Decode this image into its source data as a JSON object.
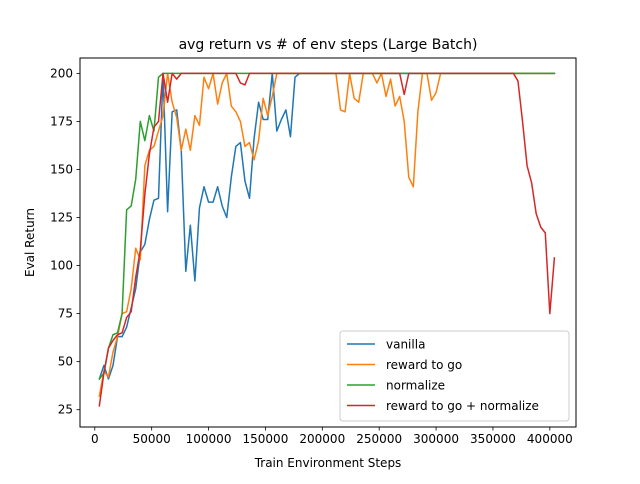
{
  "chart_data": {
    "type": "line",
    "title": "avg return vs # of env steps (Large Batch)",
    "xlabel": "Train Environment Steps",
    "ylabel": "Eval Return",
    "xlim": [
      -13000,
      423000
    ],
    "ylim": [
      16,
      208
    ],
    "xticks": [
      0,
      50000,
      100000,
      150000,
      200000,
      250000,
      300000,
      350000,
      400000
    ],
    "xtick_labels": [
      "0",
      "50000",
      "100000",
      "150000",
      "200000",
      "250000",
      "300000",
      "350000",
      "400000"
    ],
    "yticks": [
      25,
      50,
      75,
      100,
      125,
      150,
      175,
      200
    ],
    "ytick_labels": [
      "25",
      "50",
      "75",
      "100",
      "125",
      "150",
      "175",
      "200"
    ],
    "grid": false,
    "legend_position": "lower-right",
    "series": [
      {
        "name": "vanilla",
        "color": "#1f77b4",
        "x": [
          4000,
          8000,
          12000,
          16000,
          20000,
          24000,
          28000,
          32000,
          36000,
          40000,
          44000,
          48000,
          52000,
          56000,
          60000,
          64000,
          68000,
          72000,
          76000,
          80000,
          84000,
          88000,
          92000,
          96000,
          100000,
          104000,
          108000,
          112000,
          116000,
          120000,
          124000,
          128000,
          132000,
          136000,
          140000,
          144000,
          148000,
          152000,
          156000,
          160000,
          164000,
          168000,
          172000,
          176000,
          180000,
          184000,
          188000,
          192000,
          196000,
          200000,
          204000,
          208000,
          212000,
          216000,
          220000,
          224000,
          228000,
          232000,
          236000,
          240000,
          244000,
          248000,
          252000,
          256000,
          260000,
          264000,
          268000,
          272000,
          276000,
          280000,
          284000,
          288000,
          292000,
          296000,
          300000,
          304000,
          308000,
          312000,
          316000,
          320000,
          324000,
          328000,
          332000,
          336000,
          340000,
          344000,
          348000,
          352000,
          356000,
          360000,
          364000,
          368000,
          372000,
          376000,
          380000,
          384000,
          388000,
          392000,
          396000,
          400000,
          404000
        ],
        "y": [
          41,
          48,
          41,
          48,
          63,
          63,
          68,
          78,
          88,
          107,
          111,
          124,
          134,
          135,
          200,
          128,
          180,
          181,
          160,
          97,
          121,
          92,
          130,
          141,
          133,
          133,
          141,
          131,
          125,
          146,
          162,
          164,
          144,
          135,
          166,
          185,
          176,
          176,
          200,
          170,
          176,
          181,
          167,
          198,
          200,
          200,
          200,
          200,
          200,
          200,
          200,
          200,
          200,
          200,
          200,
          200,
          200,
          200,
          200,
          200,
          200,
          200,
          200,
          200,
          200,
          200,
          200,
          200,
          200,
          200,
          200,
          200,
          200,
          200,
          200,
          200,
          200,
          200,
          200,
          200,
          200,
          200,
          200,
          200,
          200,
          200,
          200,
          200,
          200,
          200,
          200,
          200,
          200,
          200,
          200,
          200,
          200,
          200,
          200,
          200,
          200
        ]
      },
      {
        "name": "reward to go",
        "color": "#ff7f0e",
        "x": [
          4000,
          8000,
          12000,
          16000,
          20000,
          24000,
          28000,
          32000,
          36000,
          40000,
          44000,
          48000,
          52000,
          56000,
          60000,
          64000,
          68000,
          72000,
          76000,
          80000,
          84000,
          88000,
          92000,
          96000,
          100000,
          104000,
          108000,
          112000,
          116000,
          120000,
          124000,
          128000,
          132000,
          136000,
          140000,
          144000,
          148000,
          152000,
          156000,
          160000,
          164000,
          168000,
          172000,
          176000,
          180000,
          184000,
          188000,
          192000,
          196000,
          200000,
          204000,
          208000,
          212000,
          216000,
          220000,
          224000,
          228000,
          232000,
          236000,
          240000,
          244000,
          248000,
          252000,
          256000,
          260000,
          264000,
          268000,
          272000,
          276000,
          280000,
          284000,
          288000,
          292000,
          296000,
          300000,
          304000,
          308000,
          312000,
          316000,
          320000,
          324000,
          328000,
          332000,
          336000,
          340000,
          344000,
          348000,
          352000,
          356000,
          360000,
          364000,
          368000,
          372000,
          376000,
          380000,
          384000,
          388000,
          392000,
          396000,
          400000,
          404000
        ],
        "y": [
          32,
          45,
          42,
          55,
          63,
          75,
          76,
          88,
          109,
          103,
          152,
          160,
          162,
          170,
          178,
          200,
          185,
          177,
          160,
          171,
          160,
          178,
          173,
          198,
          192,
          200,
          184,
          195,
          200,
          183,
          180,
          175,
          162,
          164,
          155,
          165,
          187,
          178,
          188,
          200,
          200,
          200,
          200,
          200,
          200,
          200,
          200,
          200,
          200,
          200,
          200,
          200,
          200,
          181,
          180,
          200,
          187,
          185,
          200,
          200,
          200,
          195,
          200,
          188,
          197,
          183,
          188,
          175,
          146,
          141,
          180,
          200,
          200,
          186,
          190,
          200,
          200,
          200,
          200,
          200,
          200,
          200,
          200,
          200,
          200,
          200,
          200,
          200,
          200,
          200,
          200,
          200,
          200,
          200,
          200,
          200,
          200,
          200,
          200,
          200,
          200
        ]
      },
      {
        "name": "normalize",
        "color": "#2ca02c",
        "x": [
          4000,
          8000,
          12000,
          16000,
          20000,
          24000,
          28000,
          32000,
          36000,
          40000,
          44000,
          48000,
          52000,
          56000,
          60000,
          64000,
          68000,
          72000,
          76000,
          80000,
          84000,
          88000,
          92000,
          96000,
          100000,
          104000,
          108000,
          112000,
          116000,
          120000,
          124000,
          128000,
          132000,
          136000,
          140000,
          144000,
          148000,
          152000,
          156000,
          160000,
          164000,
          168000,
          172000,
          176000,
          180000,
          184000,
          188000,
          192000,
          196000,
          200000,
          204000,
          208000,
          212000,
          216000,
          220000,
          224000,
          228000,
          232000,
          236000,
          240000,
          244000,
          248000,
          252000,
          256000,
          260000,
          264000,
          268000,
          272000,
          276000,
          280000,
          284000,
          288000,
          292000,
          296000,
          300000,
          304000,
          308000,
          312000,
          316000,
          320000,
          324000,
          328000,
          332000,
          336000,
          340000,
          344000,
          348000,
          352000,
          356000,
          360000,
          364000,
          368000,
          372000,
          376000,
          380000,
          384000,
          388000,
          392000,
          396000,
          400000,
          404000
        ],
        "y": [
          41,
          44,
          57,
          64,
          65,
          75,
          129,
          131,
          145,
          175,
          165,
          178,
          170,
          198,
          200,
          200,
          200,
          200,
          200,
          200,
          200,
          200,
          200,
          200,
          200,
          200,
          200,
          200,
          200,
          200,
          200,
          200,
          200,
          200,
          200,
          200,
          200,
          200,
          200,
          200,
          200,
          200,
          200,
          200,
          200,
          200,
          200,
          200,
          200,
          200,
          200,
          200,
          200,
          200,
          200,
          200,
          200,
          200,
          200,
          200,
          200,
          200,
          200,
          200,
          200,
          200,
          200,
          200,
          200,
          200,
          200,
          200,
          200,
          200,
          200,
          200,
          200,
          200,
          200,
          200,
          200,
          200,
          200,
          200,
          200,
          200,
          200,
          200,
          200,
          200,
          200,
          200,
          200,
          200,
          200,
          200,
          200,
          200,
          200,
          200,
          200
        ]
      },
      {
        "name": "reward to go + normalize",
        "color": "#d62728",
        "x": [
          4000,
          8000,
          12000,
          16000,
          20000,
          24000,
          28000,
          32000,
          36000,
          40000,
          44000,
          48000,
          52000,
          56000,
          60000,
          64000,
          68000,
          72000,
          76000,
          80000,
          84000,
          88000,
          92000,
          96000,
          100000,
          104000,
          108000,
          112000,
          116000,
          120000,
          124000,
          128000,
          132000,
          136000,
          140000,
          144000,
          148000,
          152000,
          156000,
          160000,
          164000,
          168000,
          172000,
          176000,
          180000,
          184000,
          188000,
          192000,
          196000,
          200000,
          204000,
          208000,
          212000,
          216000,
          220000,
          224000,
          228000,
          232000,
          236000,
          240000,
          244000,
          248000,
          252000,
          256000,
          260000,
          264000,
          268000,
          272000,
          276000,
          280000,
          284000,
          288000,
          292000,
          296000,
          300000,
          304000,
          308000,
          312000,
          316000,
          320000,
          324000,
          328000,
          332000,
          336000,
          340000,
          344000,
          348000,
          352000,
          356000,
          360000,
          364000,
          368000,
          372000,
          376000,
          380000,
          384000,
          388000,
          392000,
          396000,
          400000,
          404000
        ],
        "y": [
          27,
          44,
          57,
          61,
          64,
          65,
          73,
          76,
          94,
          108,
          137,
          158,
          172,
          175,
          200,
          185,
          200,
          197,
          200,
          200,
          200,
          200,
          200,
          200,
          200,
          200,
          200,
          200,
          200,
          200,
          200,
          195,
          194,
          200,
          200,
          200,
          200,
          200,
          200,
          200,
          200,
          200,
          200,
          200,
          200,
          200,
          200,
          200,
          200,
          200,
          200,
          200,
          200,
          200,
          200,
          200,
          200,
          200,
          200,
          200,
          200,
          200,
          200,
          200,
          200,
          200,
          200,
          189,
          200,
          200,
          200,
          200,
          200,
          200,
          200,
          200,
          200,
          200,
          200,
          200,
          200,
          200,
          200,
          200,
          200,
          200,
          200,
          200,
          200,
          200,
          200,
          200,
          196,
          175,
          152,
          143,
          127,
          120,
          117,
          75,
          104
        ]
      }
    ]
  }
}
